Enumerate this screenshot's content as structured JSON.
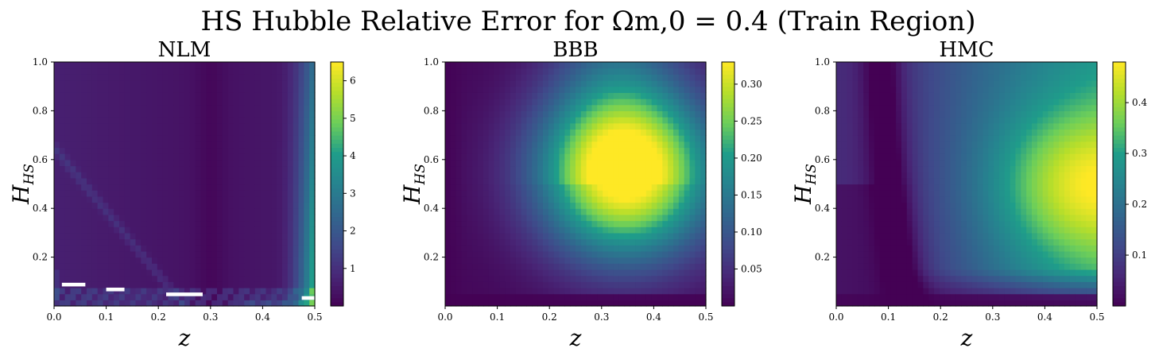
{
  "figure": {
    "title": "HS Hubble Relative Error for Ωm,0 = 0.4 (Train Region)"
  },
  "chart_data": [
    {
      "type": "heatmap",
      "title": "NLM",
      "xlabel": "z",
      "ylabel": "H_HS",
      "xlim": [
        0,
        0.5
      ],
      "ylim": [
        0,
        1.0
      ],
      "xticks": [
        "0.0",
        "0.1",
        "0.2",
        "0.3",
        "0.4",
        "0.5"
      ],
      "yticks": [
        "0.2",
        "0.4",
        "0.6",
        "0.8",
        "1.0"
      ],
      "colorbar": {
        "min": 0,
        "max": 6.5,
        "ticks": [
          "1",
          "2",
          "3",
          "4",
          "5",
          "6"
        ],
        "colormap": "viridis"
      },
      "features": {
        "background_level": 0.3,
        "dark_band_z": 0.3,
        "high_edge_z": 0.5,
        "high_edge_max": 6.5,
        "diagonal_streak": {
          "from": [
            0.0,
            0.65
          ],
          "to": [
            0.25,
            0.05
          ],
          "level": 1.4
        },
        "missing_cells": [
          {
            "z": [
              0.015,
              0.06
            ],
            "h": [
              0.08,
              0.095
            ]
          },
          {
            "z": [
              0.1,
              0.135
            ],
            "h": [
              0.06,
              0.075
            ]
          },
          {
            "z": [
              0.215,
              0.285
            ],
            "h": [
              0.04,
              0.055
            ]
          },
          {
            "z": [
              0.475,
              0.5
            ],
            "h": [
              0.025,
              0.04
            ]
          }
        ]
      }
    },
    {
      "type": "heatmap",
      "title": "BBB",
      "xlabel": "z",
      "ylabel": "H_HS",
      "xlim": [
        0,
        0.5
      ],
      "ylim": [
        0,
        1.0
      ],
      "xticks": [
        "0.0",
        "0.1",
        "0.2",
        "0.3",
        "0.4",
        "0.5"
      ],
      "yticks": [
        "0.2",
        "0.4",
        "0.6",
        "0.8",
        "1.0"
      ],
      "colorbar": {
        "min": 0,
        "max": 0.33,
        "ticks": [
          "0.05",
          "0.10",
          "0.15",
          "0.20",
          "0.25",
          "0.30"
        ],
        "colormap": "viridis"
      },
      "features": {
        "peak": {
          "z": 0.35,
          "h": 0.55,
          "value": 0.33
        }
      }
    },
    {
      "type": "heatmap",
      "title": "HMC",
      "xlabel": "z",
      "ylabel": "H_HS",
      "xlim": [
        0,
        0.5
      ],
      "ylim": [
        0,
        1.0
      ],
      "xticks": [
        "0.0",
        "0.1",
        "0.2",
        "0.3",
        "0.4",
        "0.5"
      ],
      "yticks": [
        "0.2",
        "0.4",
        "0.6",
        "0.8",
        "1.0"
      ],
      "colorbar": {
        "min": 0,
        "max": 0.48,
        "ticks": [
          "0.1",
          "0.2",
          "0.3",
          "0.4"
        ],
        "colormap": "viridis"
      },
      "features": {
        "dark_valley_z": 0.12,
        "peak": {
          "z": 0.48,
          "h": 0.5,
          "value": 0.48
        }
      }
    }
  ]
}
